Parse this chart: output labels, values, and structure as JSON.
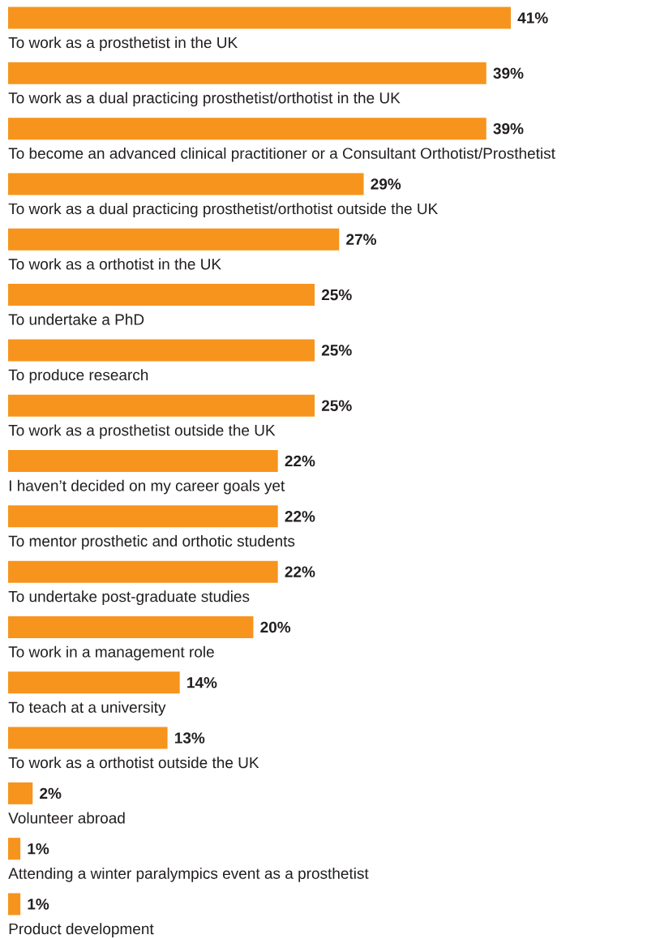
{
  "chart_data": {
    "type": "bar",
    "orientation": "horizontal",
    "color": "#f7941d",
    "categories": [
      "To work as a prosthetist in the UK",
      "To work as a dual practicing prosthetist/orthotist in the UK",
      "To become an advanced clinical practitioner or a Consultant Orthotist/Prosthetist",
      "To work as a dual practicing prosthetist/orthotist outside the UK",
      "To work as a orthotist in the UK",
      "To undertake a PhD",
      "To produce research",
      "To work as a prosthetist outside the UK",
      "I haven’t decided on my career goals yet",
      "To mentor prosthetic and orthotic students",
      "To undertake post-graduate studies",
      "To work in a management role",
      "To teach at a university",
      "To work as a orthotist outside the UK",
      "Volunteer abroad",
      "Attending a winter paralympics event as a prosthetist",
      "Product development"
    ],
    "values": [
      41,
      39,
      39,
      29,
      27,
      25,
      25,
      25,
      22,
      22,
      22,
      20,
      14,
      13,
      2,
      1,
      1
    ],
    "value_labels": [
      "41%",
      "39%",
      "39%",
      "29%",
      "27%",
      "25%",
      "25%",
      "25%",
      "22%",
      "22%",
      "22%",
      "20%",
      "14%",
      "13%",
      "2%",
      "1%",
      "1%"
    ]
  }
}
